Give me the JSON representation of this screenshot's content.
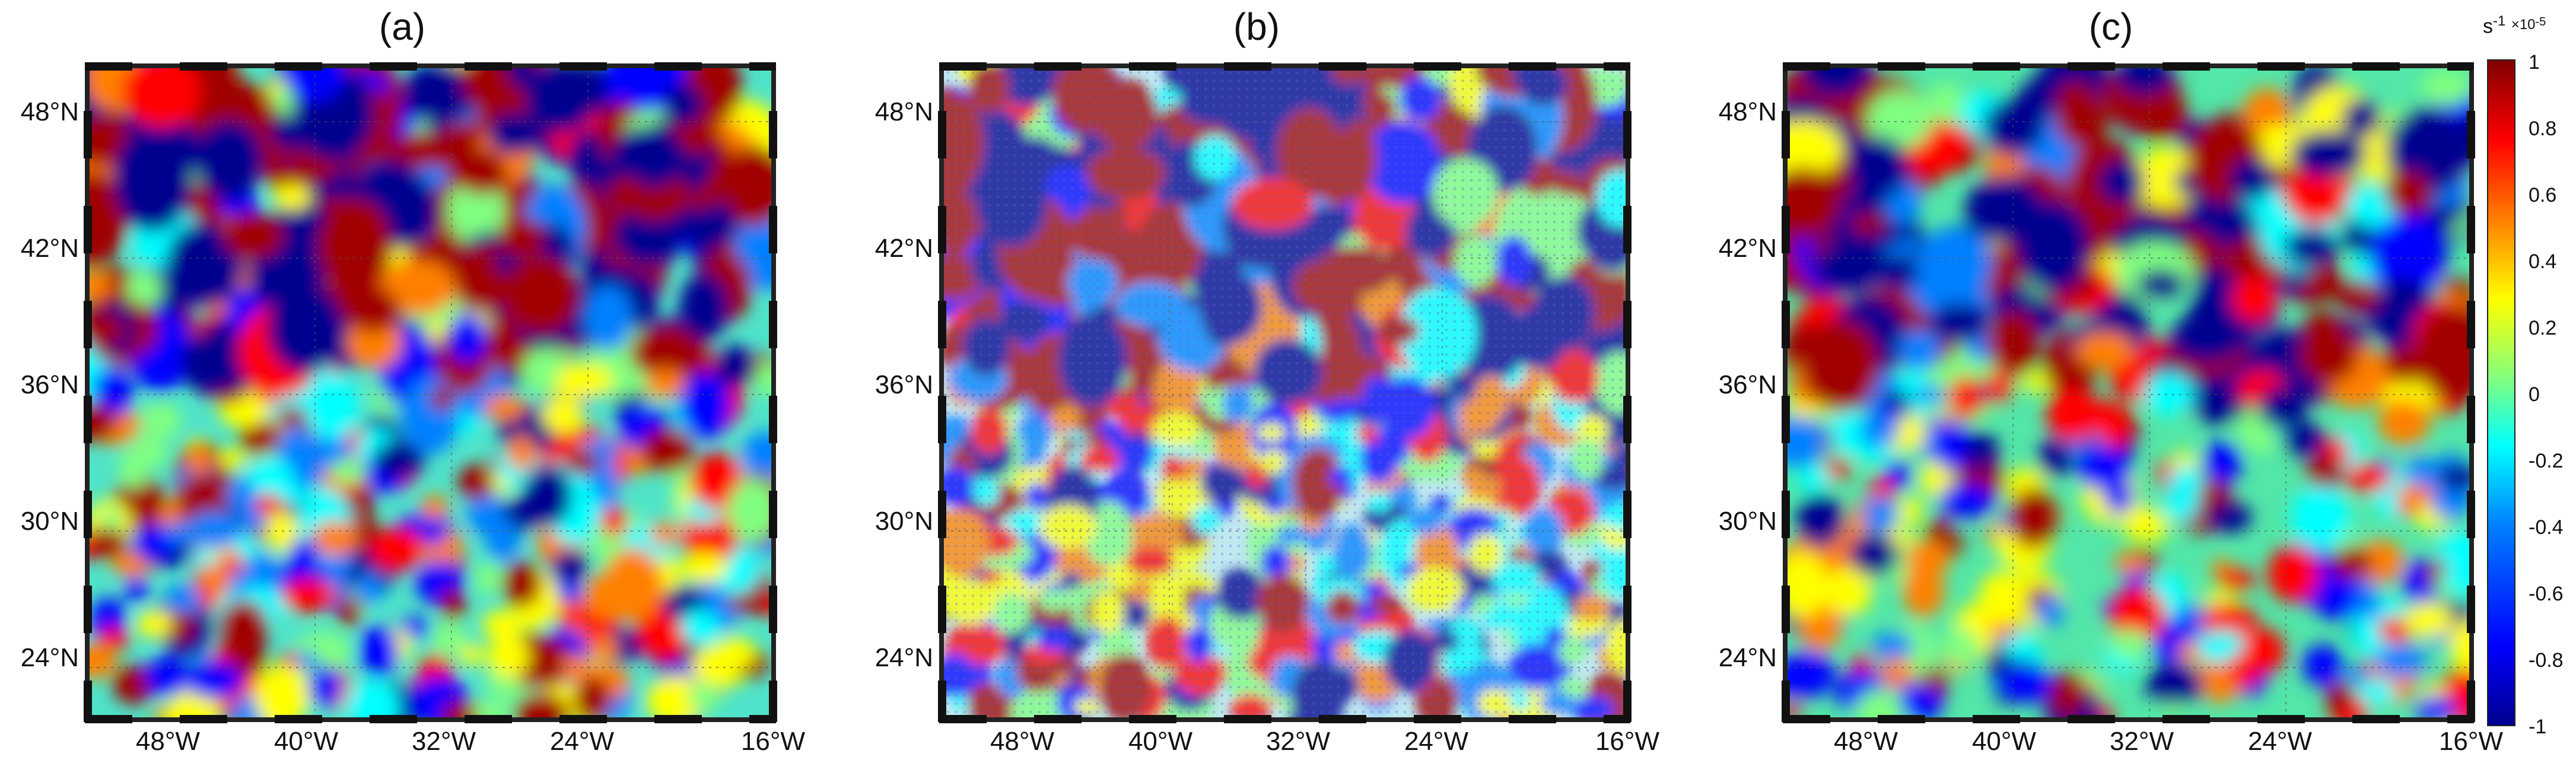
{
  "panels": [
    {
      "label": "(a)"
    },
    {
      "label": "(b)"
    },
    {
      "label": "(c)"
    }
  ],
  "lat_ticks": [
    "48°N",
    "42°N",
    "36°N",
    "30°N",
    "24°N"
  ],
  "lon_ticks": [
    "48°W",
    "40°W",
    "32°W",
    "24°W",
    "16°W"
  ],
  "colorbar": {
    "unit": "s",
    "unit_exp": "-1",
    "scale": "×10",
    "scale_exp": "-5",
    "ticks": [
      "1",
      "0.8",
      "0.6",
      "0.4",
      "0.2",
      "0",
      "-0.2",
      "-0.4",
      "-0.6",
      "-0.8",
      "-1"
    ],
    "range": [
      -1,
      1
    ],
    "colormap": "jet",
    "colors": [
      "#00008f",
      "#0000ff",
      "#0080ff",
      "#00ffff",
      "#80ff80",
      "#ffff00",
      "#ff8000",
      "#ff0000",
      "#800000"
    ]
  },
  "map_extent": {
    "lon": [
      -51,
      -16
    ],
    "lat": [
      20,
      50
    ]
  }
}
